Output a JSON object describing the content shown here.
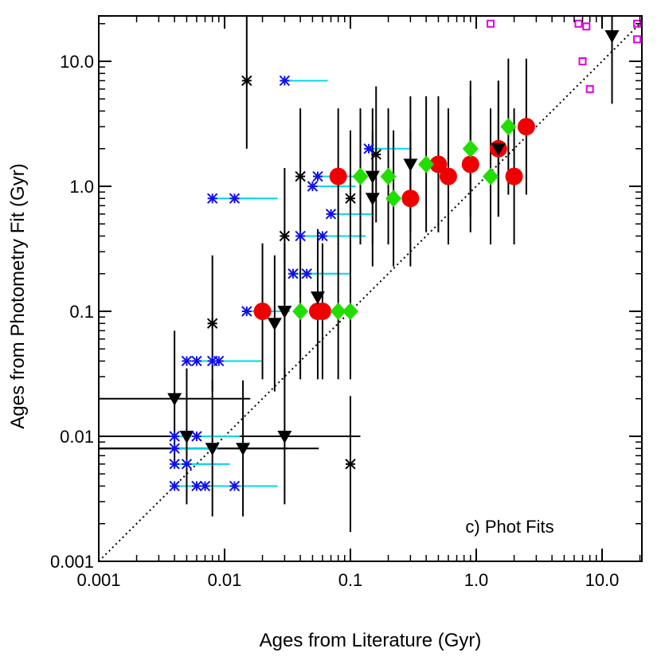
{
  "chart_data": {
    "type": "scatter",
    "xlabel": "Ages from Literature (Gyr)",
    "ylabel": "Ages from Photometry Fit (Gyr)",
    "annotation": "c) Phot Fits",
    "xscale": "log",
    "yscale": "log",
    "xlim": [
      0.001,
      20
    ],
    "ylim": [
      0.001,
      20
    ],
    "x_ticks": [
      "0.001",
      "0.01",
      "0.1",
      "1.0",
      "10.0"
    ],
    "y_ticks": [
      "0.001",
      "0.01",
      "0.1",
      "1.0",
      "10.0"
    ],
    "one_to_one_line": true,
    "colors": {
      "black": "#000000",
      "blue": "#1010e8",
      "cyan": "#00d8e8",
      "red": "#ee0000",
      "green": "#22dd00",
      "magenta": "#e000e0"
    },
    "series": [
      {
        "marker": "red-circle",
        "points": [
          [
            0.02,
            0.1
          ],
          [
            0.055,
            0.1
          ],
          [
            0.06,
            0.1
          ],
          [
            0.08,
            1.2
          ],
          [
            0.3,
            0.8
          ],
          [
            0.5,
            1.5
          ],
          [
            0.6,
            1.2
          ],
          [
            0.9,
            1.5
          ],
          [
            1.5,
            2.0
          ],
          [
            2.0,
            1.2
          ],
          [
            2.5,
            3.0
          ]
        ]
      },
      {
        "marker": "green-diamond",
        "points": [
          [
            0.04,
            0.1
          ],
          [
            0.08,
            0.1
          ],
          [
            0.1,
            0.1
          ],
          [
            0.12,
            1.2
          ],
          [
            0.2,
            1.2
          ],
          [
            0.22,
            0.8
          ],
          [
            0.4,
            1.5
          ],
          [
            0.9,
            2.0
          ],
          [
            1.3,
            1.2
          ],
          [
            1.8,
            3.0
          ]
        ]
      },
      {
        "marker": "black-triangle",
        "points": [
          [
            0.004,
            0.02
          ],
          [
            0.005,
            0.01
          ],
          [
            0.008,
            0.008
          ],
          [
            0.014,
            0.008
          ],
          [
            0.025,
            0.08
          ],
          [
            0.03,
            0.01
          ],
          [
            0.03,
            0.1
          ],
          [
            0.055,
            0.13
          ],
          [
            0.15,
            1.2
          ],
          [
            0.15,
            0.8
          ],
          [
            0.3,
            1.5
          ],
          [
            1.5,
            2.0
          ],
          [
            12,
            16
          ]
        ]
      },
      {
        "marker": "black-asterisk",
        "points": [
          [
            0.015,
            7
          ],
          [
            0.008,
            0.08
          ],
          [
            0.03,
            0.4
          ],
          [
            0.04,
            1.2
          ],
          [
            0.1,
            0.006
          ],
          [
            0.1,
            0.8
          ],
          [
            0.16,
            1.8
          ]
        ]
      },
      {
        "marker": "blue-asterisk",
        "points": [
          [
            0.004,
            0.01
          ],
          [
            0.004,
            0.008
          ],
          [
            0.004,
            0.006
          ],
          [
            0.004,
            0.004
          ],
          [
            0.005,
            0.04
          ],
          [
            0.006,
            0.04
          ],
          [
            0.005,
            0.006
          ],
          [
            0.006,
            0.004
          ],
          [
            0.007,
            0.004
          ],
          [
            0.006,
            0.01
          ],
          [
            0.008,
            0.04
          ],
          [
            0.009,
            0.04
          ],
          [
            0.008,
            0.8
          ],
          [
            0.012,
            0.8
          ],
          [
            0.012,
            0.004
          ],
          [
            0.015,
            0.1
          ],
          [
            0.03,
            7
          ],
          [
            0.035,
            0.2
          ],
          [
            0.04,
            0.4
          ],
          [
            0.045,
            0.2
          ],
          [
            0.05,
            1.0
          ],
          [
            0.055,
            1.2
          ],
          [
            0.06,
            0.4
          ],
          [
            0.07,
            0.6
          ],
          [
            0.14,
            2.0
          ]
        ]
      },
      {
        "marker": "magenta-square",
        "points": [
          [
            1.3,
            20
          ],
          [
            6.5,
            20
          ],
          [
            7,
            10
          ],
          [
            7.5,
            19
          ],
          [
            8,
            6
          ],
          [
            19,
            20
          ],
          [
            19,
            15
          ]
        ]
      }
    ]
  }
}
